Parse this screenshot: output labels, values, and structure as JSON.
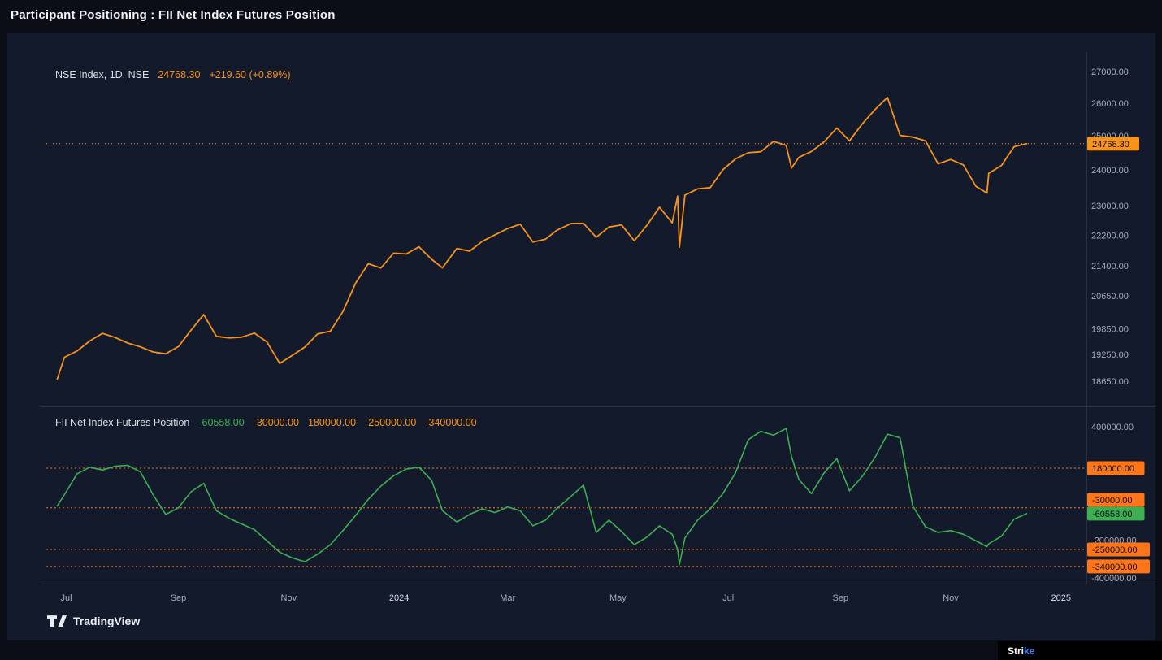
{
  "header": {
    "title": "Participant Positioning : FII Net Index Futures Position"
  },
  "attribution": {
    "label": "TradingView"
  },
  "brand": {
    "prefix": "Stri",
    "suffix": "ke"
  },
  "colors": {
    "price": "#f7931a",
    "fii": "#3fae52",
    "alert": "#ff7518",
    "axis_text": "#a5abb8",
    "year_text": "#d8dce4",
    "separator": "#2a2f3d",
    "badge_text": "#0b0e17"
  },
  "x_axis": {
    "start_date": "2023-06-20",
    "span_days": 575,
    "labels": [
      {
        "text": "Jul",
        "day": 11,
        "year": false
      },
      {
        "text": "Sep",
        "day": 73,
        "year": false
      },
      {
        "text": "Nov",
        "day": 134,
        "year": false
      },
      {
        "text": "2024",
        "day": 195,
        "year": true
      },
      {
        "text": "Mar",
        "day": 255,
        "year": false
      },
      {
        "text": "May",
        "day": 316,
        "year": false
      },
      {
        "text": "Jul",
        "day": 377,
        "year": false
      },
      {
        "text": "Sep",
        "day": 439,
        "year": false
      },
      {
        "text": "Nov",
        "day": 500,
        "year": false
      },
      {
        "text": "2025",
        "day": 561,
        "year": true
      }
    ]
  },
  "chart_data": [
    {
      "type": "line",
      "pane": "price",
      "title": "NSE Index, 1D, NSE",
      "legend_value": "24768.30",
      "legend_change": "+219.60 (+0.89%)",
      "color": "#f7931a",
      "y_scale": "log",
      "ylim": [
        18093,
        27637
      ],
      "yticks": [
        27000,
        26000,
        25000,
        24000,
        23000,
        22200,
        21400,
        20650,
        19850,
        19250,
        18650
      ],
      "last_value": 24768.3,
      "x_days": [
        6,
        10,
        17,
        24,
        31,
        38,
        45,
        52,
        59,
        66,
        73,
        80,
        87,
        94,
        101,
        108,
        115,
        122,
        129,
        136,
        143,
        150,
        157,
        164,
        171,
        178,
        185,
        192,
        199,
        206,
        213,
        219,
        227,
        234,
        241,
        248,
        255,
        262,
        269,
        276,
        282,
        290,
        297,
        304,
        311,
        318,
        325,
        332,
        339,
        346,
        349,
        350,
        353,
        360,
        367,
        374,
        381,
        388,
        395,
        402,
        409,
        412,
        416,
        423,
        430,
        437,
        444,
        451,
        458,
        465,
        472,
        479,
        486,
        493,
        500,
        507,
        514,
        520,
        521,
        528,
        535,
        542
      ],
      "values": [
        18691,
        19189,
        19332,
        19565,
        19745,
        19646,
        19517,
        19428,
        19310,
        19266,
        19435,
        19820,
        20192,
        19674,
        19638,
        19654,
        19751,
        19543,
        19047,
        19231,
        19425,
        19732,
        19794,
        20268,
        20969,
        21457,
        21349,
        21731,
        21711,
        21894,
        21572,
        21353,
        21854,
        21783,
        22041,
        22213,
        22378,
        22494,
        22024,
        22097,
        22327,
        22514,
        22519,
        22147,
        22420,
        22476,
        22056,
        22466,
        22957,
        22531,
        23264,
        21884,
        23290,
        23466,
        23501,
        24011,
        24324,
        24502,
        24531,
        24835,
        24718,
        24056,
        24367,
        24541,
        24823,
        25236,
        24852,
        25357,
        25791,
        26179,
        25015,
        24964,
        24854,
        24180,
        24305,
        24148,
        23533,
        23350,
        23907,
        24131,
        24678,
        24768.3
      ]
    },
    {
      "type": "line",
      "pane": "fii",
      "title": "FII Net Index Futures Position",
      "legend_values": [
        "-60558.00",
        "-30000.00",
        "180000.00",
        "-250000.00",
        "-340000.00"
      ],
      "color": "#3fae52",
      "y_scale": "linear",
      "ylim": [
        -430800,
        498000
      ],
      "yticks": [
        400000,
        -200000,
        -400000
      ],
      "alert_lines": [
        180000,
        -30000,
        -250000,
        -340000
      ],
      "last_value": -60558,
      "x_days": [
        6,
        10,
        17,
        24,
        31,
        38,
        45,
        52,
        59,
        66,
        73,
        80,
        87,
        94,
        101,
        108,
        115,
        122,
        129,
        136,
        143,
        150,
        157,
        164,
        171,
        178,
        185,
        192,
        199,
        206,
        213,
        219,
        227,
        234,
        241,
        248,
        255,
        262,
        269,
        276,
        282,
        290,
        297,
        304,
        311,
        318,
        325,
        332,
        339,
        346,
        349,
        350,
        353,
        360,
        367,
        374,
        381,
        388,
        395,
        402,
        409,
        412,
        416,
        423,
        430,
        437,
        444,
        451,
        458,
        465,
        472,
        479,
        486,
        493,
        500,
        507,
        514,
        520,
        521,
        528,
        535,
        542
      ],
      "values": [
        -20000,
        40000,
        150000,
        185000,
        170000,
        190000,
        195000,
        160000,
        40000,
        -65000,
        -30000,
        55000,
        100000,
        -45000,
        -85000,
        -115000,
        -145000,
        -205000,
        -265000,
        -295000,
        -315000,
        -275000,
        -225000,
        -150000,
        -70000,
        15000,
        85000,
        140000,
        175000,
        185000,
        115000,
        -45000,
        -105000,
        -65000,
        -35000,
        -55000,
        -25000,
        -45000,
        -125000,
        -95000,
        -35000,
        30000,
        90000,
        -160000,
        -95000,
        -155000,
        -225000,
        -185000,
        -125000,
        -170000,
        -250000,
        -330000,
        -190000,
        -95000,
        -35000,
        45000,
        155000,
        330000,
        375000,
        355000,
        390000,
        240000,
        120000,
        45000,
        155000,
        230000,
        60000,
        135000,
        235000,
        360000,
        340000,
        -20000,
        -130000,
        -160000,
        -150000,
        -170000,
        -205000,
        -235000,
        -220000,
        -180000,
        -90000,
        -60558
      ]
    }
  ]
}
